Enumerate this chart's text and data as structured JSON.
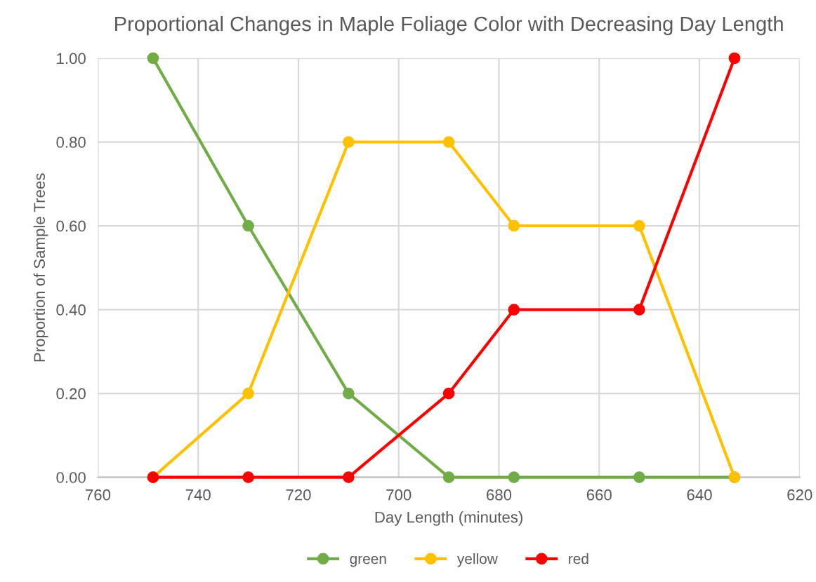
{
  "chart_data": {
    "type": "line",
    "title": "Proportional Changes in Maple Foliage Color with Decreasing Day Length",
    "xlabel": "Day Length (minutes)",
    "ylabel": "Proportion of Sample Trees",
    "x": [
      749,
      730,
      710,
      690,
      677,
      652,
      633
    ],
    "series": [
      {
        "name": "green",
        "color": "#70ad47",
        "values": [
          1.0,
          0.6,
          0.2,
          0.0,
          0.0,
          0.0,
          0.0
        ]
      },
      {
        "name": "yellow",
        "color": "#ffc000",
        "values": [
          0.0,
          0.2,
          0.8,
          0.8,
          0.6,
          0.6,
          0.0
        ]
      },
      {
        "name": "red",
        "color": "#ff0000",
        "values": [
          0.0,
          0.0,
          0.0,
          0.2,
          0.4,
          0.4,
          1.0
        ]
      }
    ],
    "xlim": [
      760,
      620
    ],
    "xticks": [
      760,
      740,
      720,
      700,
      680,
      660,
      640,
      620
    ],
    "ylim": [
      0,
      1.0
    ],
    "yticks": [
      {
        "value": 0,
        "label": "0.00"
      },
      {
        "value": 0.2,
        "label": "0.20"
      },
      {
        "value": 0.4,
        "label": "0.40"
      },
      {
        "value": 0.6,
        "label": "0.60"
      },
      {
        "value": 0.8,
        "label": "0.80"
      },
      {
        "value": 1.0,
        "label": "1.00"
      }
    ],
    "grid": true,
    "legend": "bottom",
    "marker": "circle",
    "line_style": "solid"
  }
}
